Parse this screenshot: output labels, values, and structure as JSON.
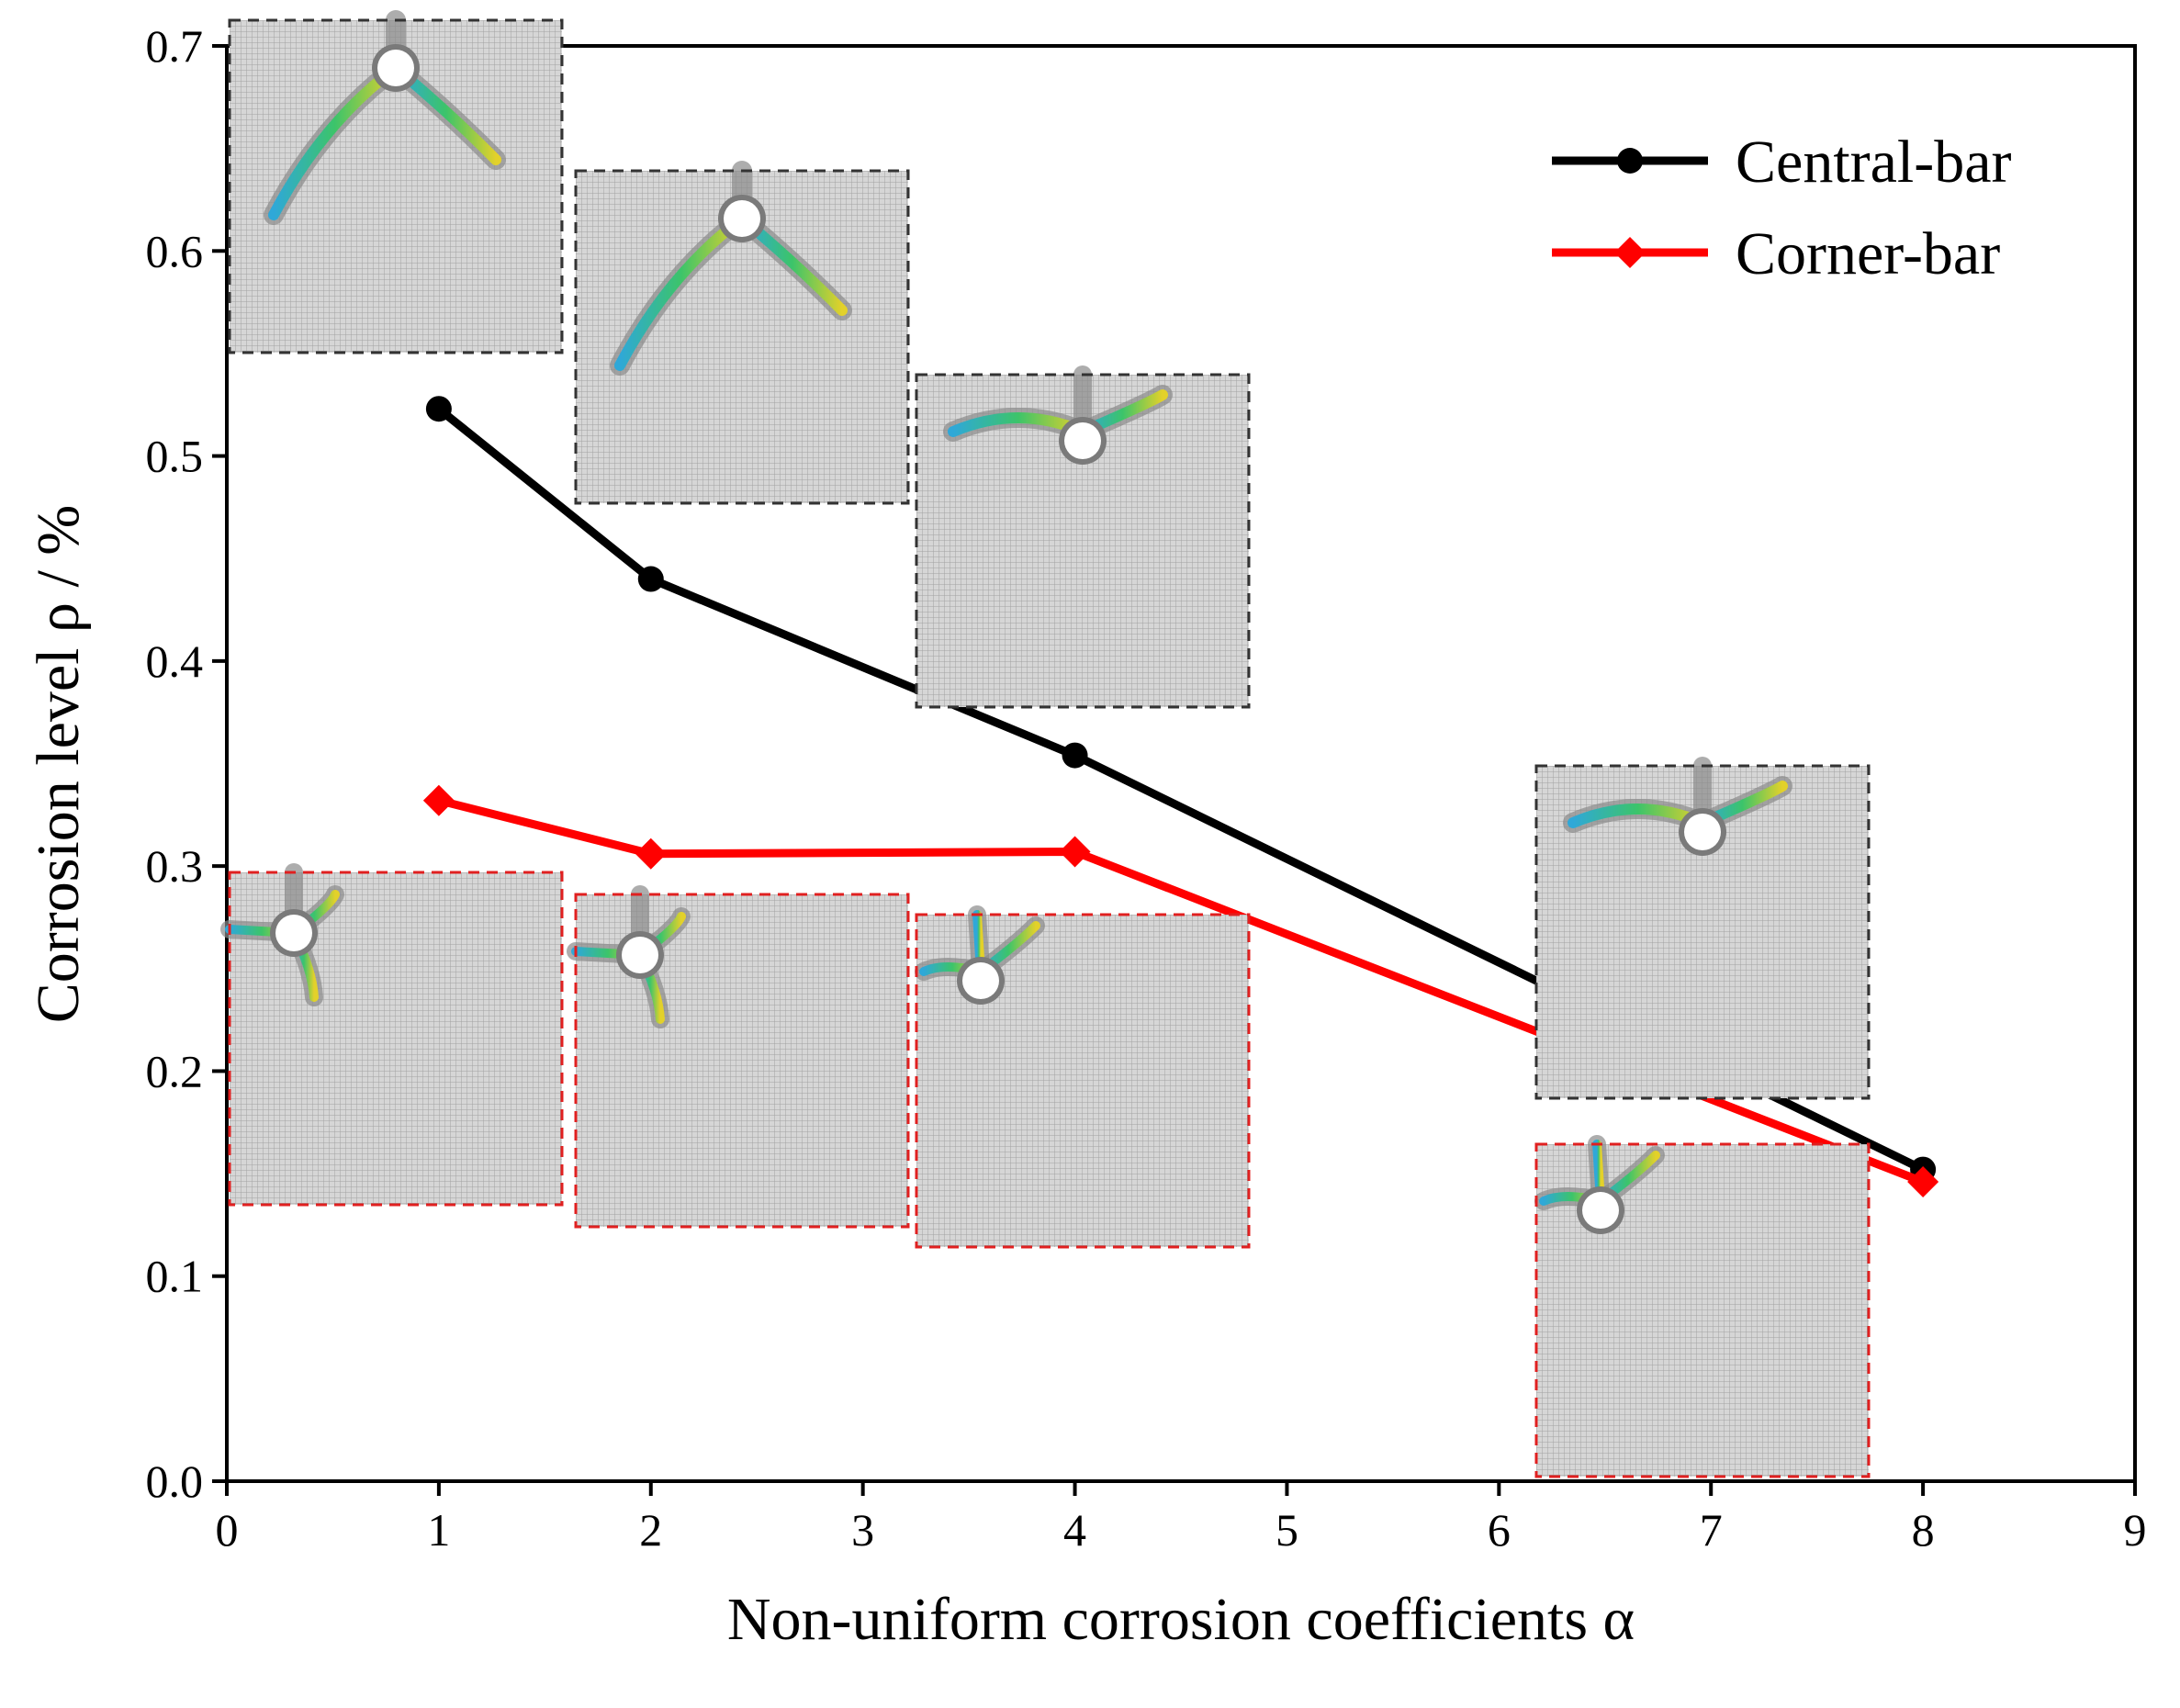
{
  "chart_data": {
    "type": "line",
    "title": "",
    "xlabel": "Non-uniform corrosion coefficients α",
    "ylabel": "Corrosion level ρ / %",
    "xlim": [
      0,
      9
    ],
    "ylim": [
      0,
      0.7
    ],
    "x_tick_labels": [
      "0",
      "1",
      "2",
      "3",
      "4",
      "5",
      "6",
      "7",
      "8",
      "9"
    ],
    "y_ticks": [
      "0.0",
      "0.1",
      "0.2",
      "0.3",
      "0.4",
      "0.5",
      "0.6",
      "0.7"
    ],
    "legend_position": "top-right",
    "series": [
      {
        "name": "Central-bar",
        "color": "#000000",
        "marker": "circle",
        "points": [
          {
            "x_pos": 1,
            "y": 0.523
          },
          {
            "x_pos": 2,
            "y": 0.44
          },
          {
            "x_pos": 4,
            "y": 0.354
          },
          {
            "x_pos": 8,
            "y": 0.152
          }
        ]
      },
      {
        "name": "Corner-bar",
        "color": "#ff0000",
        "marker": "diamond",
        "points": [
          {
            "x_pos": 1,
            "y": 0.332
          },
          {
            "x_pos": 2,
            "y": 0.306
          },
          {
            "x_pos": 4,
            "y": 0.307
          },
          {
            "x_pos": 8,
            "y": 0.146
          }
        ]
      }
    ],
    "insets": [
      {
        "series": "Central-bar",
        "at": 1,
        "crack_pattern": "three-crack-y",
        "border_color": "#333333"
      },
      {
        "series": "Central-bar",
        "at": 2,
        "crack_pattern": "three-crack-y",
        "border_color": "#333333"
      },
      {
        "series": "Central-bar",
        "at": 4,
        "crack_pattern": "three-crack-flat",
        "border_color": "#333333"
      },
      {
        "series": "Central-bar",
        "at": 8,
        "crack_pattern": "three-crack-flat",
        "border_color": "#333333"
      },
      {
        "series": "Corner-bar",
        "at": 1,
        "crack_pattern": "corner-cross",
        "border_color": "#e02020"
      },
      {
        "series": "Corner-bar",
        "at": 2,
        "crack_pattern": "corner-cross",
        "border_color": "#e02020"
      },
      {
        "series": "Corner-bar",
        "at": 4,
        "crack_pattern": "corner-two",
        "border_color": "#e02020"
      },
      {
        "series": "Corner-bar",
        "at": 8,
        "crack_pattern": "corner-two",
        "border_color": "#e02020"
      }
    ]
  }
}
